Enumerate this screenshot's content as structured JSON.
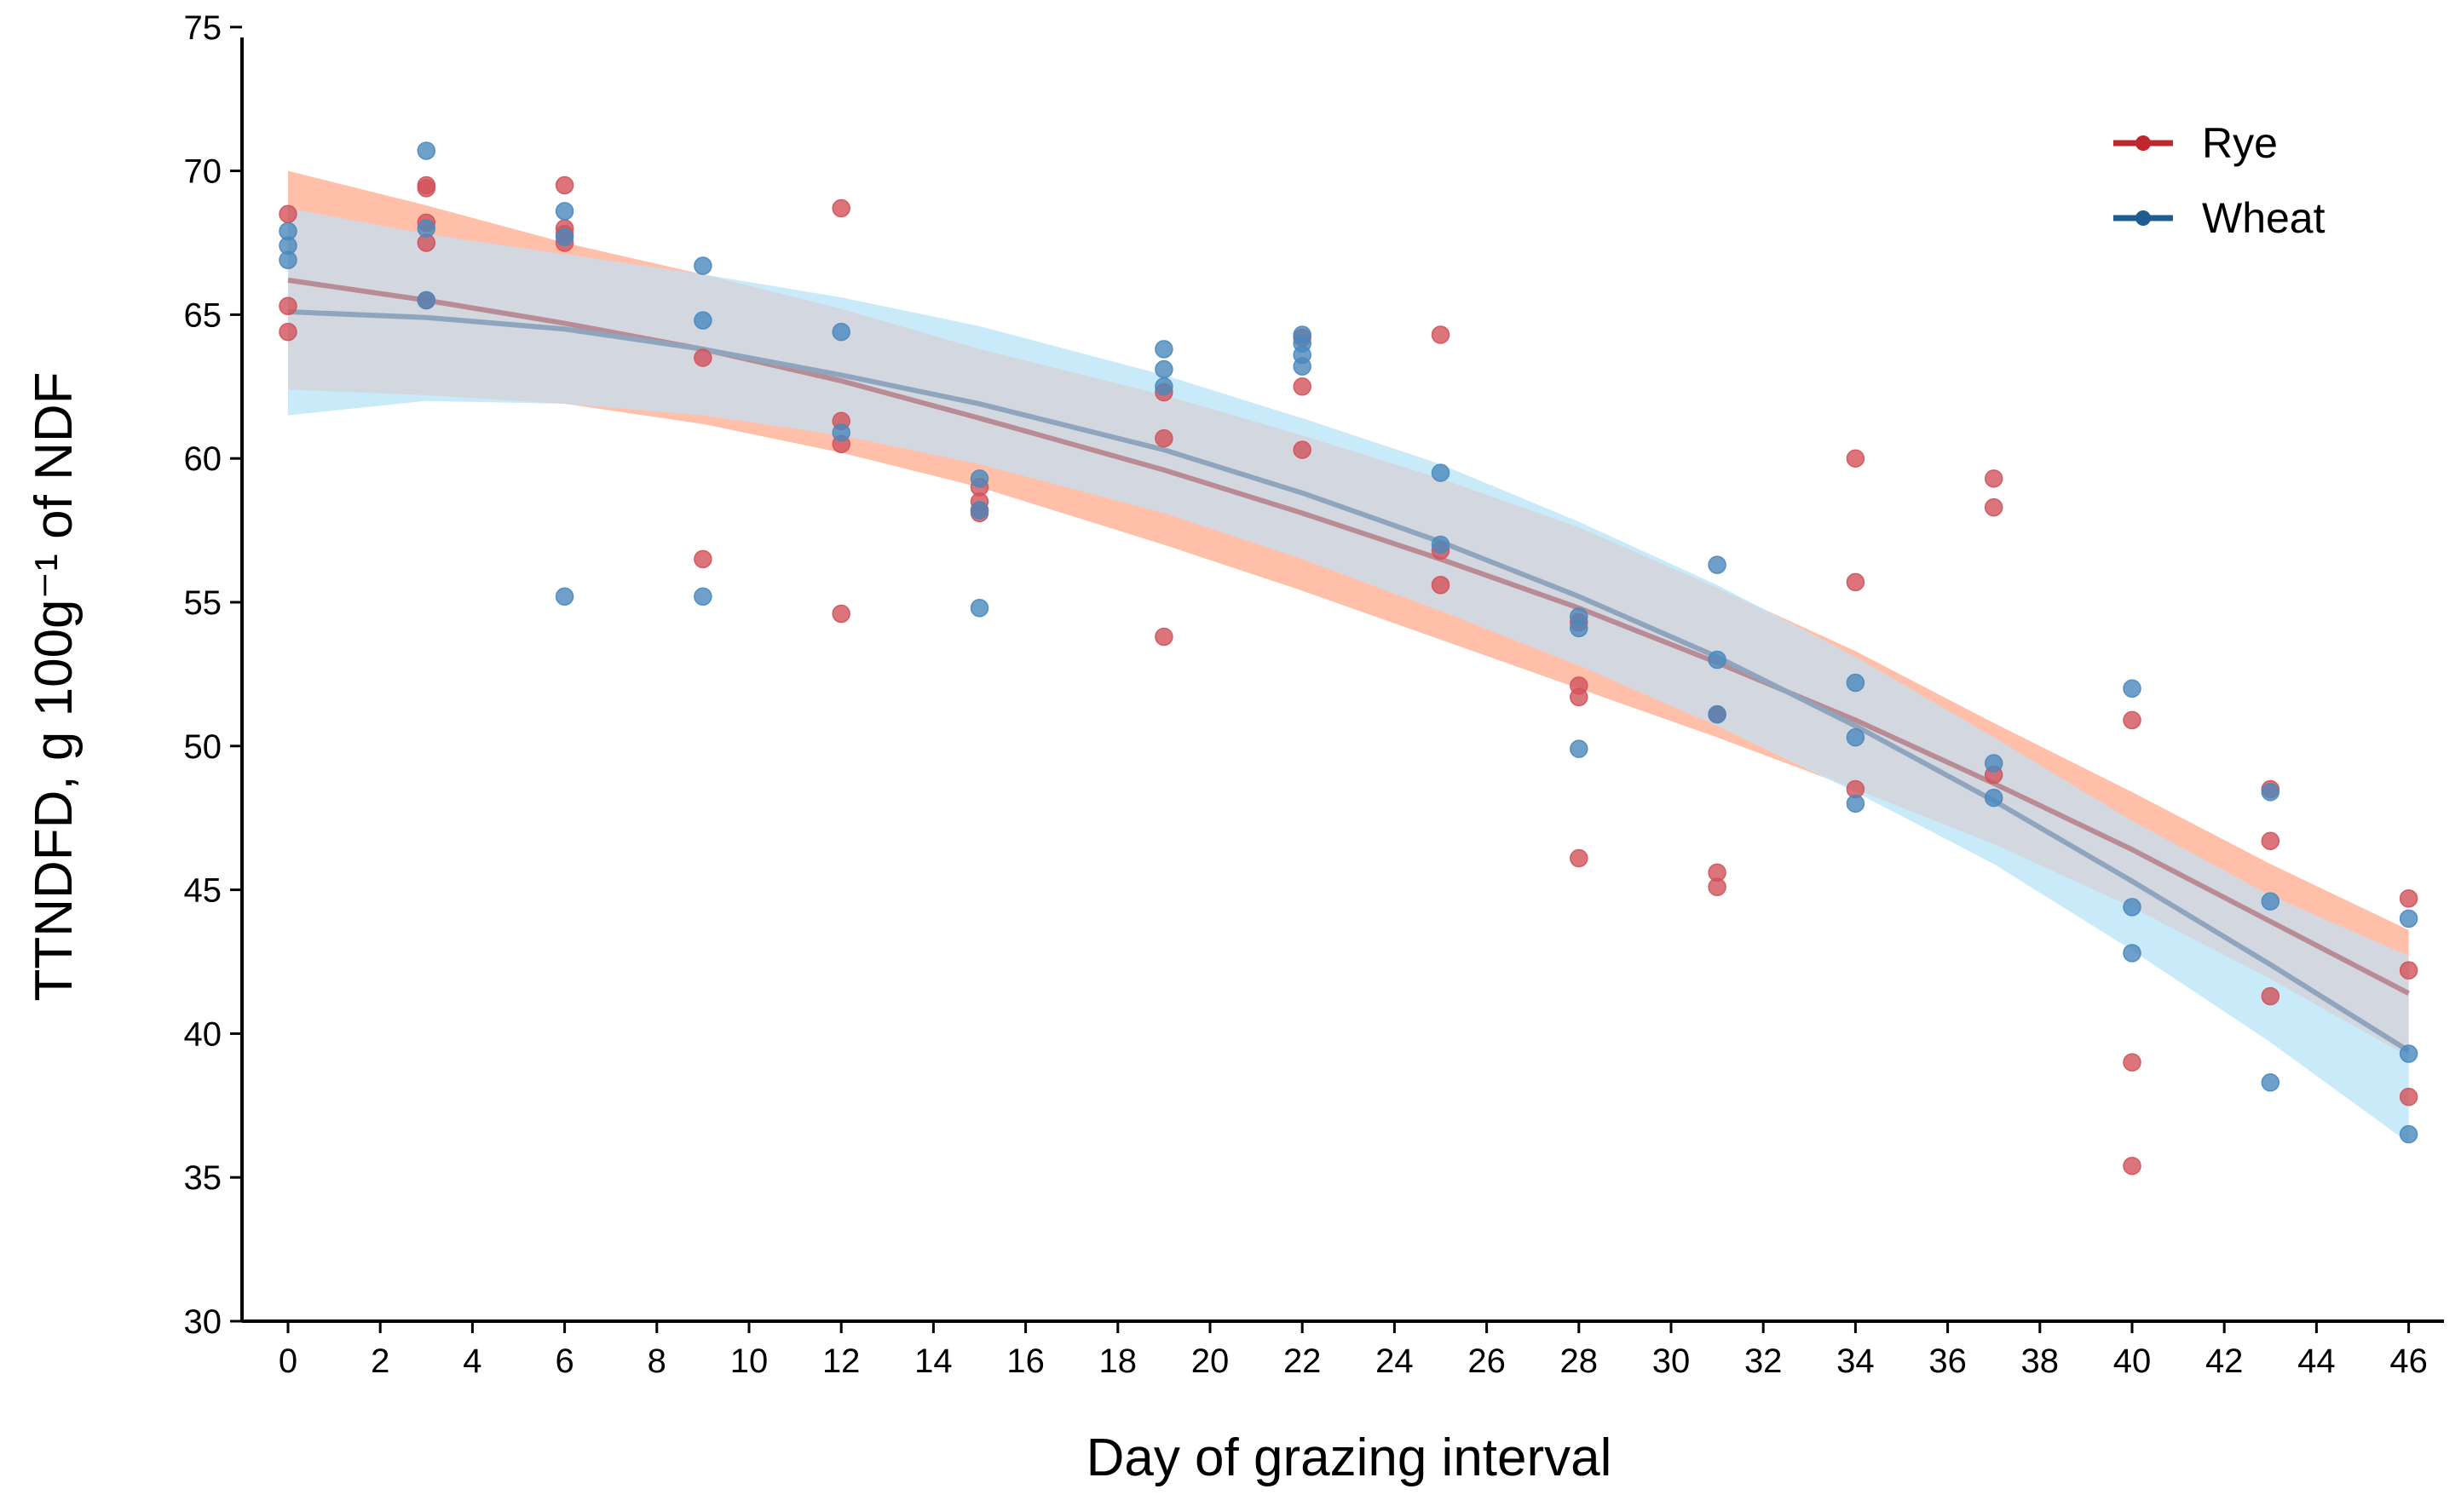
{
  "chart_data": {
    "type": "scatter",
    "xlabel": "Day of grazing interval",
    "ylabel": "TTNDFD, g 100g⁻¹ of NDF",
    "xlim": [
      -1,
      47
    ],
    "ylim": [
      30,
      75
    ],
    "x_ticks": [
      0,
      2,
      4,
      6,
      8,
      10,
      12,
      14,
      16,
      18,
      20,
      22,
      24,
      26,
      28,
      30,
      32,
      34,
      36,
      38,
      40,
      42,
      44,
      46
    ],
    "y_ticks": [
      30,
      35,
      40,
      45,
      50,
      55,
      60,
      65,
      70,
      75
    ],
    "legend_position": "top-right",
    "series": [
      {
        "name": "Rye",
        "color": "#c0262d",
        "point_color": "#d2525a",
        "line_color": "#b98c95",
        "band_color": "#ffb49a",
        "points": [
          [
            0,
            68.5
          ],
          [
            0,
            65.3
          ],
          [
            0,
            64.4
          ],
          [
            3,
            69.5
          ],
          [
            3,
            69.4
          ],
          [
            3,
            68.2
          ],
          [
            3,
            67.5
          ],
          [
            3,
            65.5
          ],
          [
            6,
            69.5
          ],
          [
            6,
            68.0
          ],
          [
            6,
            67.8
          ],
          [
            6,
            67.5
          ],
          [
            9,
            56.5
          ],
          [
            9,
            63.5
          ],
          [
            12,
            68.7
          ],
          [
            12,
            61.3
          ],
          [
            12,
            60.5
          ],
          [
            12,
            54.6
          ],
          [
            15,
            59.0
          ],
          [
            15,
            58.5
          ],
          [
            15,
            58.2
          ],
          [
            15,
            58.1
          ],
          [
            19,
            62.3
          ],
          [
            19,
            60.7
          ],
          [
            19,
            53.8
          ],
          [
            22,
            64.2
          ],
          [
            22,
            62.5
          ],
          [
            22,
            60.3
          ],
          [
            25,
            64.3
          ],
          [
            25,
            56.8
          ],
          [
            25,
            55.6
          ],
          [
            28,
            52.1
          ],
          [
            28,
            51.7
          ],
          [
            28,
            46.1
          ],
          [
            28,
            54.3
          ],
          [
            31,
            51.1
          ],
          [
            31,
            45.6
          ],
          [
            31,
            45.1
          ],
          [
            34,
            60.0
          ],
          [
            34,
            55.7
          ],
          [
            34,
            48.5
          ],
          [
            37,
            59.3
          ],
          [
            37,
            58.3
          ],
          [
            37,
            49.0
          ],
          [
            40,
            50.9
          ],
          [
            40,
            39.0
          ],
          [
            40,
            35.4
          ],
          [
            43,
            48.5
          ],
          [
            43,
            46.7
          ],
          [
            43,
            41.3
          ],
          [
            46,
            44.7
          ],
          [
            46,
            42.2
          ],
          [
            46,
            37.8
          ]
        ],
        "fit": {
          "x": [
            0,
            3,
            6,
            9,
            12,
            15,
            19,
            22,
            25,
            28,
            31,
            34,
            37,
            40,
            43,
            46
          ],
          "y": [
            66.2,
            65.5,
            64.7,
            63.8,
            62.7,
            61.4,
            59.6,
            58.1,
            56.5,
            54.8,
            52.9,
            50.9,
            48.7,
            46.4,
            43.9,
            41.4
          ],
          "lower": [
            62.4,
            62.2,
            61.9,
            61.2,
            60.2,
            59.0,
            57.0,
            55.4,
            53.7,
            52.0,
            50.3,
            48.5,
            46.6,
            44.4,
            41.9,
            39.2
          ],
          "upper": [
            70.0,
            68.8,
            67.5,
            66.4,
            65.2,
            63.8,
            62.2,
            60.8,
            59.3,
            57.6,
            55.5,
            53.3,
            50.8,
            48.4,
            45.9,
            43.6
          ]
        }
      },
      {
        "name": "Wheat",
        "color": "#1f5c8f",
        "point_color": "#4a88bd",
        "line_color": "#8fa5bd",
        "band_color": "#bfe6f7",
        "points": [
          [
            0,
            67.9
          ],
          [
            0,
            67.4
          ],
          [
            0,
            66.9
          ],
          [
            3,
            70.7
          ],
          [
            3,
            68.0
          ],
          [
            3,
            65.5
          ],
          [
            6,
            68.6
          ],
          [
            6,
            67.7
          ],
          [
            6,
            55.2
          ],
          [
            9,
            66.7
          ],
          [
            9,
            64.8
          ],
          [
            9,
            55.2
          ],
          [
            12,
            64.4
          ],
          [
            12,
            60.9
          ],
          [
            15,
            59.3
          ],
          [
            15,
            58.2
          ],
          [
            15,
            54.8
          ],
          [
            19,
            63.8
          ],
          [
            19,
            63.1
          ],
          [
            19,
            62.5
          ],
          [
            22,
            64.3
          ],
          [
            22,
            64.0
          ],
          [
            22,
            63.6
          ],
          [
            22,
            63.2
          ],
          [
            25,
            59.5
          ],
          [
            25,
            57.0
          ],
          [
            28,
            54.5
          ],
          [
            28,
            54.1
          ],
          [
            28,
            49.9
          ],
          [
            31,
            56.3
          ],
          [
            31,
            53.0
          ],
          [
            31,
            51.1
          ],
          [
            34,
            52.2
          ],
          [
            34,
            50.3
          ],
          [
            34,
            48.0
          ],
          [
            37,
            49.4
          ],
          [
            37,
            48.2
          ],
          [
            40,
            52.0
          ],
          [
            40,
            44.4
          ],
          [
            40,
            42.8
          ],
          [
            43,
            48.4
          ],
          [
            43,
            44.6
          ],
          [
            43,
            38.3
          ],
          [
            46,
            44.0
          ],
          [
            46,
            39.3
          ],
          [
            46,
            36.5
          ]
        ],
        "fit": {
          "x": [
            0,
            3,
            6,
            9,
            12,
            15,
            19,
            22,
            25,
            28,
            31,
            34,
            37,
            40,
            43,
            46
          ],
          "y": [
            65.1,
            64.9,
            64.5,
            63.8,
            62.9,
            61.9,
            60.3,
            58.8,
            57.1,
            55.2,
            53.1,
            50.7,
            48.1,
            45.3,
            42.4,
            39.4
          ],
          "lower": [
            61.5,
            62.0,
            61.9,
            61.5,
            60.8,
            59.8,
            58.1,
            56.5,
            54.7,
            52.8,
            50.7,
            48.4,
            45.9,
            42.9,
            39.7,
            36.2
          ],
          "upper": [
            68.7,
            67.8,
            67.1,
            66.4,
            65.6,
            64.6,
            62.9,
            61.4,
            59.8,
            57.8,
            55.6,
            53.1,
            50.3,
            47.4,
            44.8,
            42.7
          ]
        }
      }
    ]
  }
}
